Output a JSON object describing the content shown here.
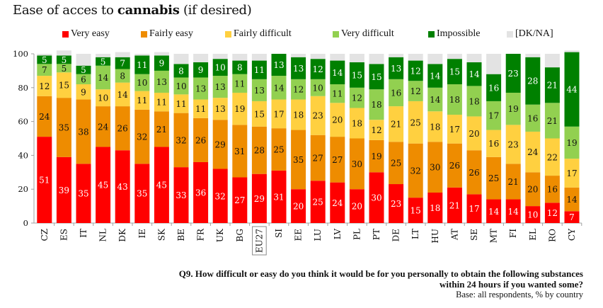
{
  "chart_data": {
    "type": "bar",
    "stacked": true,
    "title_prefix": "Ease of acces to ",
    "title_bold": "cannabis",
    "title_suffix": " (if desired)",
    "xlabel": "",
    "ylabel": "",
    "ylim": [
      0,
      100
    ],
    "yticks": [
      0,
      20,
      40,
      60,
      80,
      100
    ],
    "grid": false,
    "legend_position": "top",
    "highlighted_category": "EU27",
    "categories": [
      "CZ",
      "ES",
      "IT",
      "NL",
      "DK",
      "IE",
      "SK",
      "BE",
      "FR",
      "UK",
      "BG",
      "EU27",
      "SI",
      "EE",
      "LU",
      "LV",
      "PL",
      "PT",
      "DE",
      "LT",
      "HU",
      "AT",
      "SE",
      "MT",
      "FI",
      "EL",
      "RO",
      "CY"
    ],
    "series": [
      {
        "name": "Very easy",
        "color": "#ff0000",
        "label_color": "#ffffff",
        "values": [
          51,
          39,
          35,
          45,
          43,
          35,
          45,
          33,
          36,
          32,
          27,
          29,
          31,
          20,
          25,
          24,
          20,
          30,
          23,
          15,
          18,
          21,
          17,
          14,
          14,
          10,
          12,
          7
        ]
      },
      {
        "name": "Fairly easy",
        "color": "#ee8c00",
        "label_color": "#111111",
        "values": [
          24,
          35,
          38,
          24,
          26,
          32,
          21,
          32,
          26,
          29,
          31,
          28,
          25,
          35,
          27,
          27,
          30,
          19,
          25,
          32,
          30,
          26,
          26,
          25,
          21,
          20,
          16,
          14
        ]
      },
      {
        "name": "Fairly difficult",
        "color": "#ffd040",
        "label_color": "#111111",
        "values": [
          12,
          15,
          9,
          10,
          14,
          11,
          11,
          11,
          11,
          13,
          19,
          15,
          17,
          18,
          23,
          20,
          18,
          12,
          21,
          25,
          18,
          17,
          20,
          16,
          23,
          24,
          22,
          17
        ]
      },
      {
        "name": "Very difficult",
        "color": "#92d050",
        "label_color": "#111111",
        "values": [
          7,
          5,
          6,
          14,
          8,
          10,
          13,
          10,
          13,
          13,
          11,
          13,
          14,
          12,
          10,
          11,
          12,
          18,
          16,
          12,
          14,
          18,
          18,
          17,
          19,
          16,
          21,
          19
        ]
      },
      {
        "name": "Impossible",
        "color": "#008000",
        "label_color": "#ffffff",
        "values": [
          5,
          5,
          5,
          5,
          7,
          11,
          9,
          8,
          9,
          10,
          8,
          11,
          13,
          13,
          12,
          14,
          15,
          15,
          13,
          12,
          14,
          15,
          14,
          16,
          23,
          28,
          21,
          44
        ]
      },
      {
        "name": "[DK/NA]",
        "color": "#e3e3e3",
        "label_color": "#111111",
        "show_labels": false,
        "values": [
          1,
          3,
          7,
          2,
          3,
          1,
          2,
          6,
          5,
          3,
          4,
          4,
          0,
          2,
          3,
          4,
          5,
          6,
          2,
          4,
          6,
          3,
          5,
          12,
          0,
          2,
          8,
          1
        ]
      }
    ]
  },
  "footer": {
    "question_line1": "Q9.  How difficult or easy do you think it would be for you personally to obtain the following substances",
    "question_line2": "within 24 hours if you wanted some?",
    "base": "Base: all respondents, % by country"
  }
}
